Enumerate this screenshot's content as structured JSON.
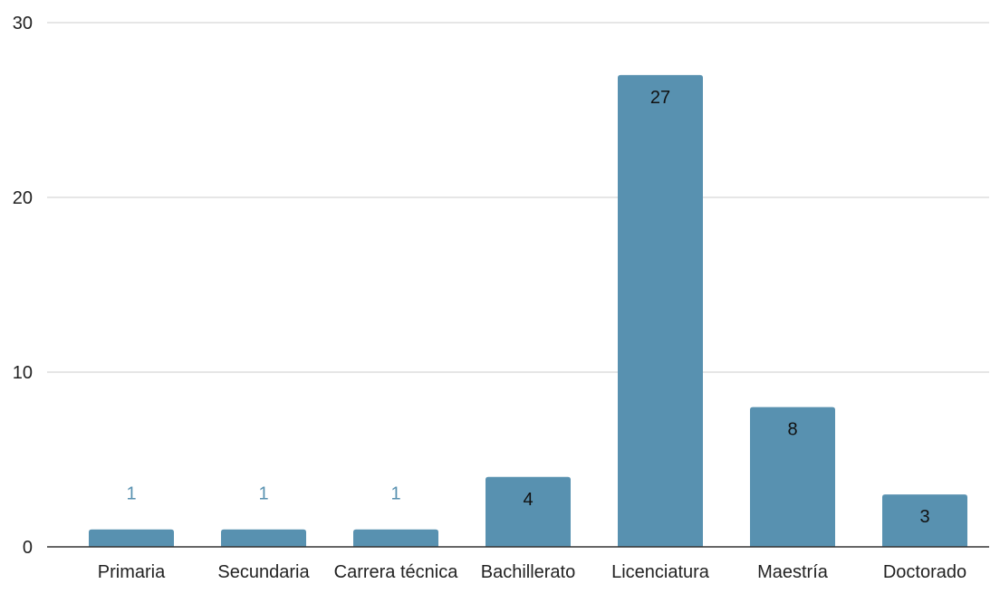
{
  "chart_data": {
    "type": "bar",
    "categories": [
      "Primaria",
      "Secundaria",
      "Carrera técnica",
      "Bachillerato",
      "Licenciatura",
      "Maestría",
      "Doctorado"
    ],
    "values": [
      1,
      1,
      1,
      4,
      27,
      8,
      3
    ],
    "data_labels": [
      "1",
      "1",
      "1",
      "4",
      "27",
      "8",
      "3"
    ],
    "title": "",
    "xlabel": "",
    "ylabel": "",
    "ylim": [
      0,
      30
    ],
    "yticks": [
      0,
      10,
      20,
      30
    ],
    "grid": true,
    "legend": "none",
    "colors": {
      "bar": "#5891b0",
      "label_inside": "#111111",
      "label_outside": "#5891b0",
      "grid": "#cccccc",
      "axis": "#333333"
    }
  }
}
